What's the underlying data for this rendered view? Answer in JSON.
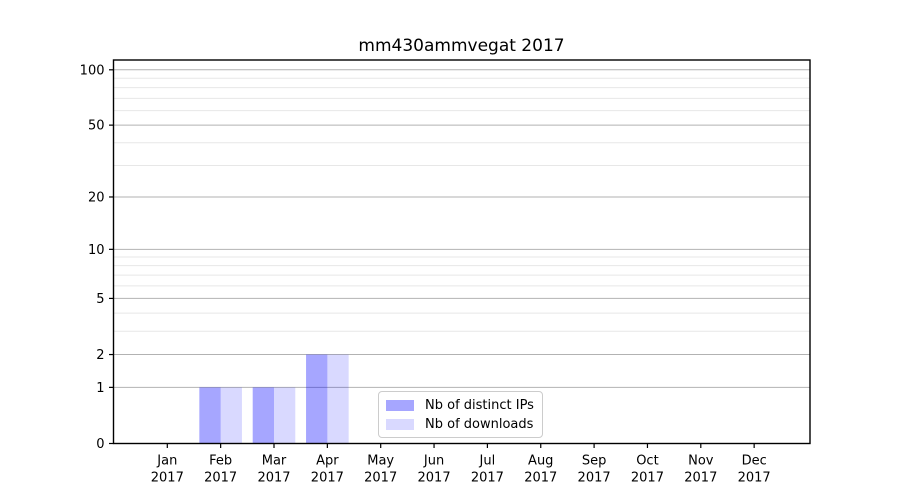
{
  "chart_data": {
    "type": "bar",
    "title": "mm430ammvegat 2017",
    "x_tick_months": [
      "Jan",
      "Feb",
      "Mar",
      "Apr",
      "May",
      "Jun",
      "Jul",
      "Aug",
      "Sep",
      "Oct",
      "Nov",
      "Dec"
    ],
    "x_tick_year": "2017",
    "categories": [
      "Jan 2017",
      "Feb 2017",
      "Mar 2017",
      "Apr 2017",
      "May 2017",
      "Jun 2017",
      "Jul 2017",
      "Aug 2017",
      "Sep 2017",
      "Oct 2017",
      "Nov 2017",
      "Dec 2017"
    ],
    "series": [
      {
        "name": "Nb of distinct IPs",
        "color": "rgba(0,0,255,0.35)",
        "values": [
          0,
          1,
          1,
          2,
          0,
          0,
          0,
          0,
          0,
          0,
          0,
          0
        ]
      },
      {
        "name": "Nb of downloads",
        "color": "rgba(0,0,255,0.15)",
        "values": [
          0,
          1,
          1,
          2,
          0,
          0,
          0,
          0,
          0,
          0,
          0,
          0
        ]
      }
    ],
    "yscale": "log1p",
    "ylim": [
      0,
      113
    ],
    "yticks_major": [
      0,
      1,
      2,
      5,
      10,
      20,
      50,
      100
    ],
    "yticks_minor": [
      3,
      4,
      6,
      7,
      8,
      9,
      30,
      40,
      60,
      70,
      80,
      90
    ],
    "grid": "horizontal",
    "legend_position": "lower-center",
    "colors": {
      "major_grid": "#b2b2b2",
      "minor_grid": "#e7e7e7",
      "axis": "#000000",
      "text": "#000000",
      "legend_border": "#cccccc"
    }
  }
}
